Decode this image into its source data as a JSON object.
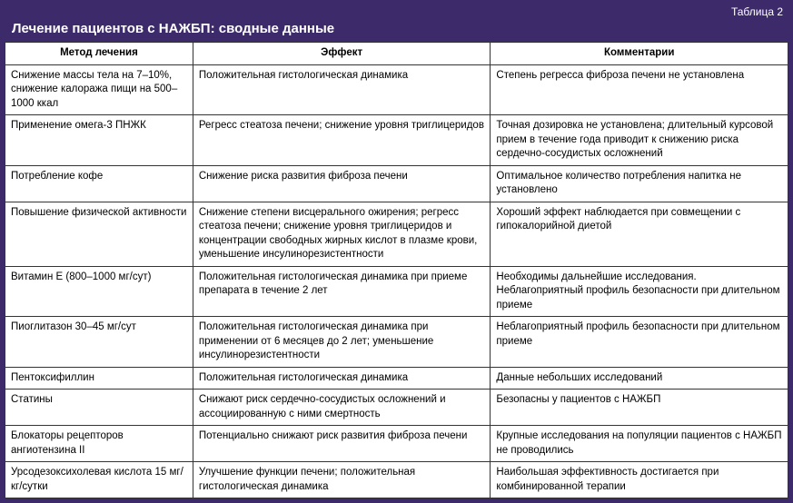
{
  "header": {
    "table_label": "Таблица 2",
    "title": "Лечение пациентов с НАЖБП: сводные данные"
  },
  "columns": [
    "Метод лечения",
    "Эффект",
    "Комментарии"
  ],
  "rows": [
    {
      "method": "Снижение массы тела на 7–10%, снижение калоража пищи на 500–1000 ккал",
      "effect": "Положительная гистологическая динамика",
      "comment": "Степень регресса фиброза печени не установлена"
    },
    {
      "method": "Применение омега-3 ПНЖК",
      "effect": "Регресс стеатоза печени; снижение уровня триглицеридов",
      "comment": "Точная дозировка не установлена; длительный курсовой прием в течение года приводит к снижению риска сердечно-сосудистых осложнений"
    },
    {
      "method": "Потребление кофе",
      "effect": "Снижение риска развития фиброза печени",
      "comment": "Оптимальное количество потребления напитка не установлено"
    },
    {
      "method": "Повышение физической активности",
      "effect": "Снижение степени висцерального ожирения; регресс стеатоза печени; снижение уровня триглицеридов и концентрации свободных жирных кислот в плазме крови, уменьшение инсулинорезистентности",
      "comment": "Хороший эффект наблюдается при совмещении с гипокалорийной диетой"
    },
    {
      "method": "Витамин Е (800–1000 мг/сут)",
      "effect": "Положительная гистологическая динамика при приеме препарата в течение 2 лет",
      "comment": "Необходимы дальнейшие исследования. Неблагоприятный профиль безопасности при длительном приеме"
    },
    {
      "method": "Пиоглитазон 30–45 мг/сут",
      "effect": "Положительная гистологическая динамика при применении от 6 месяцев до 2 лет; уменьшение инсулинорезистентности",
      "comment": "Неблагоприятный профиль безопасности при длительном приеме"
    },
    {
      "method": "Пентоксифиллин",
      "effect": "Положительная гистологическая динамика",
      "comment": "Данные небольших исследований"
    },
    {
      "method": "Статины",
      "effect": "Снижают риск сердечно-сосудистых осложнений и ассоциированную с ними смертность",
      "comment": "Безопасны у пациентов с НАЖБП"
    },
    {
      "method": "Блокаторы рецепторов ангиотензина II",
      "effect": "Потенциально снижают риск развития фиброза печени",
      "comment": "Крупные исследования на популяции пациентов с НАЖБП не проводились"
    },
    {
      "method": "Урсодезоксихолевая кислота 15 мг/кг/сутки",
      "effect": "Улучшение функции печени; положительная гистологическая динамика",
      "comment": "Наибольшая эффективность достигается при комбинированной терапии"
    }
  ],
  "style": {
    "header_bg": "#3d2a6b",
    "header_text": "#ffffff",
    "cell_bg": "#ffffff",
    "cell_text": "#000000",
    "border_color": "#333333",
    "title_fontsize": 15,
    "label_fontsize": 12,
    "body_fontsize": 11.5
  }
}
